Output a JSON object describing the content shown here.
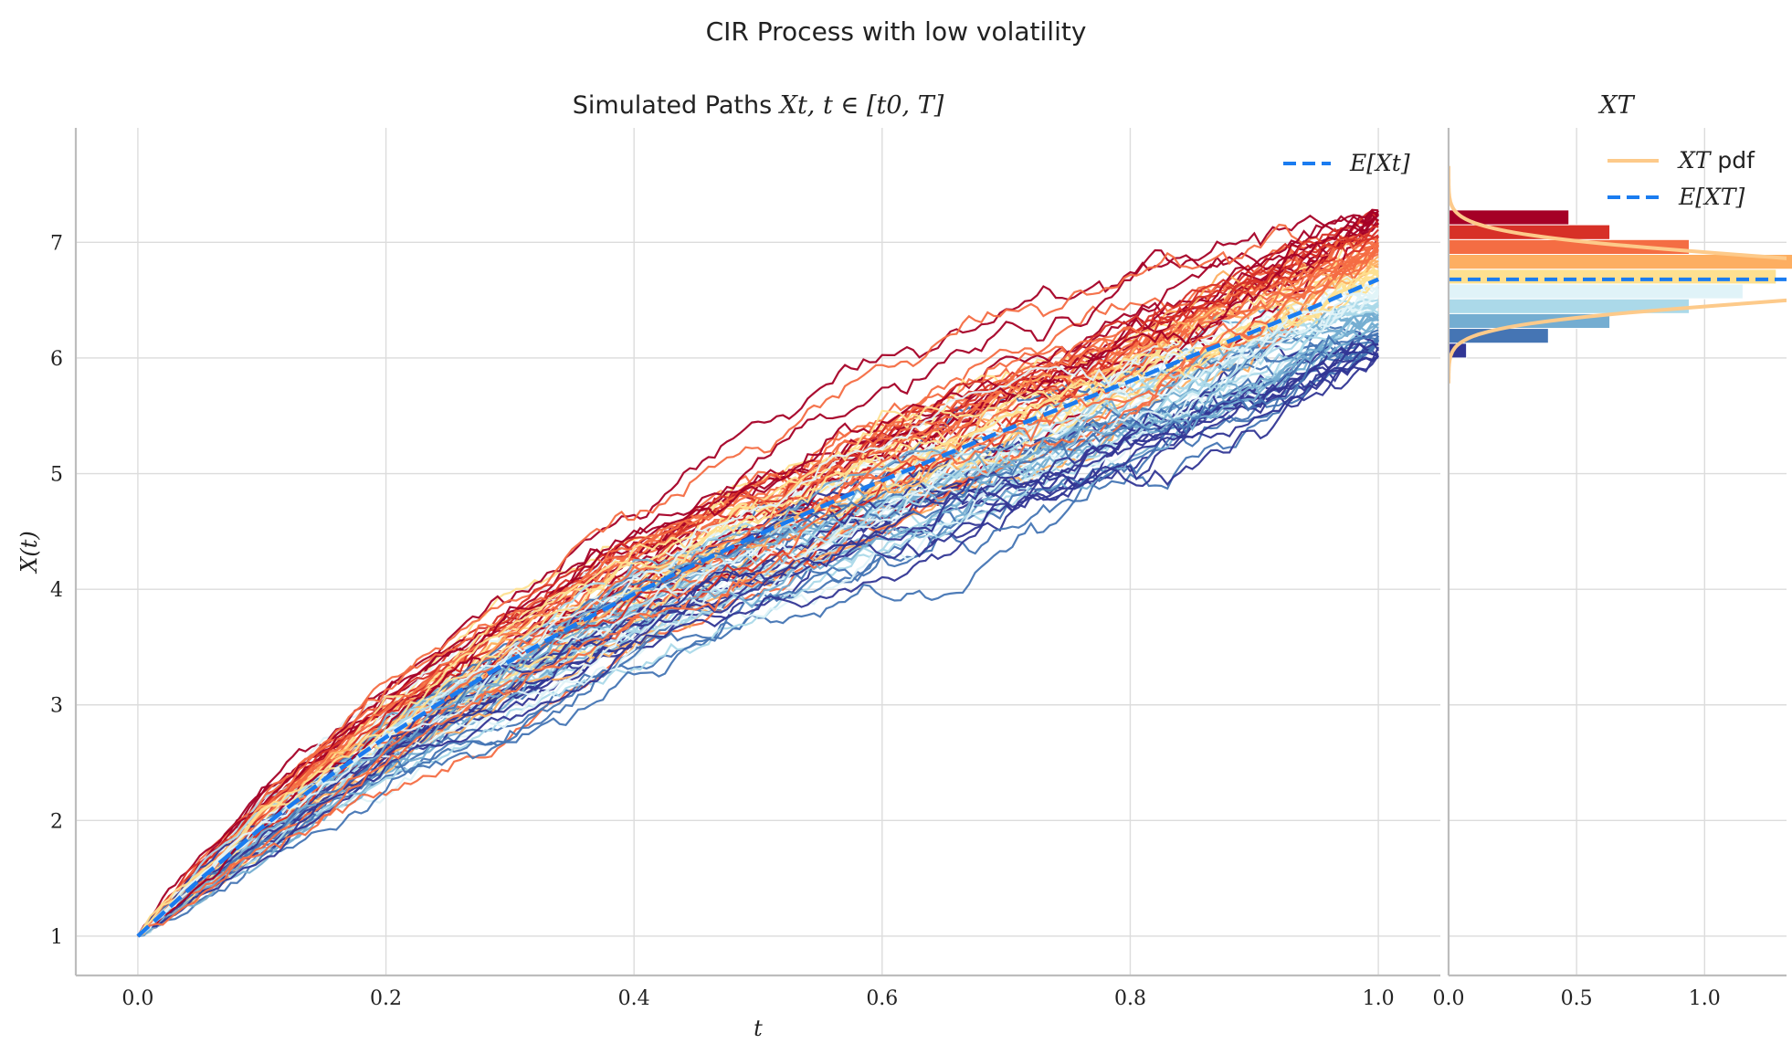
{
  "figure": {
    "title": "CIR Process with low volatility"
  },
  "colors": {
    "mean": "#1a7cf0",
    "pdf": "#fdca8a",
    "palette": [
      "#a50026",
      "#d73027",
      "#f46d43",
      "#fdae61",
      "#fee090",
      "#e0f3f8",
      "#abd9e9",
      "#74add1",
      "#4575b4",
      "#313695"
    ]
  },
  "chart_data": [
    {
      "type": "line",
      "title": "Simulated Paths X_t, t ∈ [t0, T]",
      "title_parts": {
        "text": "Simulated Paths ",
        "math": "Xt, t ∈ [t0, T]"
      },
      "xlabel": "t",
      "ylabel": "X(t)",
      "xlim": [
        -0.05,
        1.05
      ],
      "ylim": [
        0.66,
        7.99
      ],
      "xticks": [
        0.0,
        0.2,
        0.4,
        0.6,
        0.8,
        1.0
      ],
      "xtick_labels": [
        "0.0",
        "0.2",
        "0.4",
        "0.6",
        "0.8",
        "1.0"
      ],
      "yticks": [
        1,
        2,
        3,
        4,
        5,
        6,
        7
      ],
      "ytick_labels": [
        "1",
        "2",
        "3",
        "4",
        "5",
        "6",
        "7"
      ],
      "grid": true,
      "legend": {
        "placement": "top-right",
        "entries": [
          "E[Xt]"
        ]
      },
      "mean_curve": {
        "name": "E[Xt]",
        "x": [
          0.0,
          0.05,
          0.1,
          0.15,
          0.2,
          0.25,
          0.3,
          0.35,
          0.4,
          0.45,
          0.5,
          0.55,
          0.6,
          0.65,
          0.7,
          0.75,
          0.8,
          0.85,
          0.9,
          0.95,
          1.0
        ],
        "y": [
          1.0,
          1.49,
          1.94,
          2.35,
          2.72,
          3.06,
          3.38,
          3.68,
          3.96,
          4.22,
          4.47,
          4.71,
          4.94,
          5.16,
          5.38,
          5.59,
          5.8,
          6.02,
          6.23,
          6.45,
          6.68
        ]
      },
      "paths": {
        "count": 100,
        "x0": 0.0,
        "x1": 1.0,
        "start_value": 1.0,
        "end_min": 6.0,
        "end_max": 7.28
      }
    },
    {
      "type": "bar",
      "orientation": "horizontal",
      "title": "X_T",
      "title_math": "XT",
      "xlim": [
        0.0,
        1.32
      ],
      "xticks": [
        0.0,
        0.5,
        1.0
      ],
      "xtick_labels": [
        "0.0",
        "0.5",
        "1.0"
      ],
      "grid": true,
      "legend": {
        "placement": "top-right",
        "entries": [
          "XT pdf",
          "E[XT]"
        ]
      },
      "legend_labels": {
        "pdf_math": "XT",
        "pdf_text": " pdf",
        "mean_math": "E[XT]"
      },
      "bins": [
        {
          "y0": 6.0,
          "y1": 6.128,
          "density": 0.07
        },
        {
          "y0": 6.128,
          "y1": 6.256,
          "density": 0.39
        },
        {
          "y0": 6.256,
          "y1": 6.384,
          "density": 0.63
        },
        {
          "y0": 6.384,
          "y1": 6.512,
          "density": 0.94
        },
        {
          "y0": 6.512,
          "y1": 6.64,
          "density": 1.15
        },
        {
          "y0": 6.64,
          "y1": 6.768,
          "density": 1.28
        },
        {
          "y0": 6.768,
          "y1": 6.896,
          "density": 1.41
        },
        {
          "y0": 6.896,
          "y1": 7.024,
          "density": 0.94
        },
        {
          "y0": 7.024,
          "y1": 7.152,
          "density": 0.63
        },
        {
          "y0": 7.152,
          "y1": 7.28,
          "density": 0.47
        }
      ],
      "mean_value": 6.68,
      "pdf": {
        "mean": 6.68,
        "sd": 0.2,
        "y_range": [
          5.78,
          7.66
        ]
      }
    }
  ]
}
